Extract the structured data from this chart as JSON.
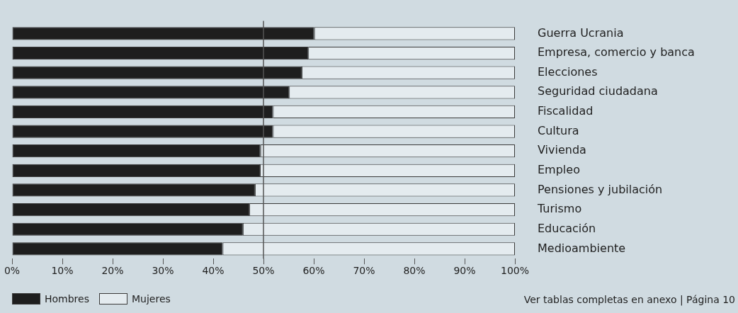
{
  "chart_data": {
    "type": "bar",
    "orientation": "horizontal",
    "stacked": true,
    "categories": [
      "Guerra Ucrania",
      "Empresa, comercio y banca",
      "Elecciones",
      "Seguridad ciudadana",
      "Fiscalidad",
      "Cultura",
      "Vivienda",
      "Empleo",
      "Pensiones y jubilación",
      "Turismo",
      "Educación",
      "Medioambiente"
    ],
    "series": [
      {
        "name": "Hombres",
        "color": "#1e1e1e",
        "values": [
          60.1,
          58.9,
          57.6,
          55.1,
          51.9,
          51.9,
          49.4,
          49.3,
          48.3,
          47.2,
          45.9,
          41.9
        ]
      },
      {
        "name": "Mujeres",
        "color": "#e4ebef",
        "values": [
          39.9,
          41.1,
          42.4,
          44.9,
          48.1,
          48.1,
          50.6,
          50.7,
          51.7,
          52.8,
          54.1,
          58.1
        ]
      }
    ],
    "xlim": [
      0,
      100
    ],
    "xticks": [
      {
        "value": 0,
        "label": "0%"
      },
      {
        "value": 10,
        "label": "10%"
      },
      {
        "value": 20,
        "label": "20%"
      },
      {
        "value": 30,
        "label": "30%"
      },
      {
        "value": 40,
        "label": "40%"
      },
      {
        "value": 50,
        "label": "50%"
      },
      {
        "value": 60,
        "label": "60%"
      },
      {
        "value": 70,
        "label": "70%"
      },
      {
        "value": 80,
        "label": "80%"
      },
      {
        "value": 90,
        "label": "90%"
      },
      {
        "value": 100,
        "label": "100%"
      }
    ],
    "ref_lines": [
      {
        "axis": "x",
        "value": 50,
        "color": "#555555"
      }
    ],
    "grid": false,
    "legend": "bottom left",
    "annotations": [
      "Ver tablas completas en anexo | Página 10"
    ]
  }
}
